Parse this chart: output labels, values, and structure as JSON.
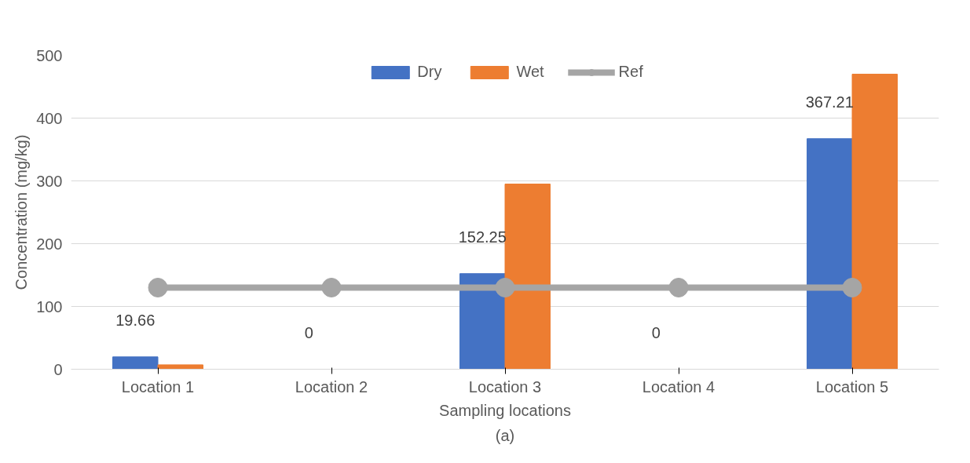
{
  "chart_data": {
    "type": "bar",
    "xlabel": "Sampling locations",
    "ylabel": "Concentration (mg/kg)",
    "categories": [
      "Location 1",
      "Location 2",
      "Location 3",
      "Location 4",
      "Location 5"
    ],
    "series": [
      {
        "name": "Dry",
        "color": "#4472c4",
        "values": [
          19.66,
          0,
          152.25,
          0,
          367.21
        ],
        "value_labels": [
          "19.66",
          "0",
          "152.25",
          "0",
          "367.21"
        ]
      },
      {
        "name": "Wet",
        "color": "#ed7d31",
        "values": [
          7,
          0,
          295,
          0,
          470
        ]
      },
      {
        "name": "Ref",
        "type": "line",
        "marker": "circle",
        "color": "#a5a5a5",
        "values": [
          130,
          130,
          130,
          130,
          130
        ]
      }
    ],
    "ylim": [
      0,
      500
    ],
    "yticks": [
      0,
      100,
      200,
      300,
      400,
      500
    ],
    "grid": "y",
    "legend": "top",
    "annotations": [
      "(a)"
    ]
  }
}
